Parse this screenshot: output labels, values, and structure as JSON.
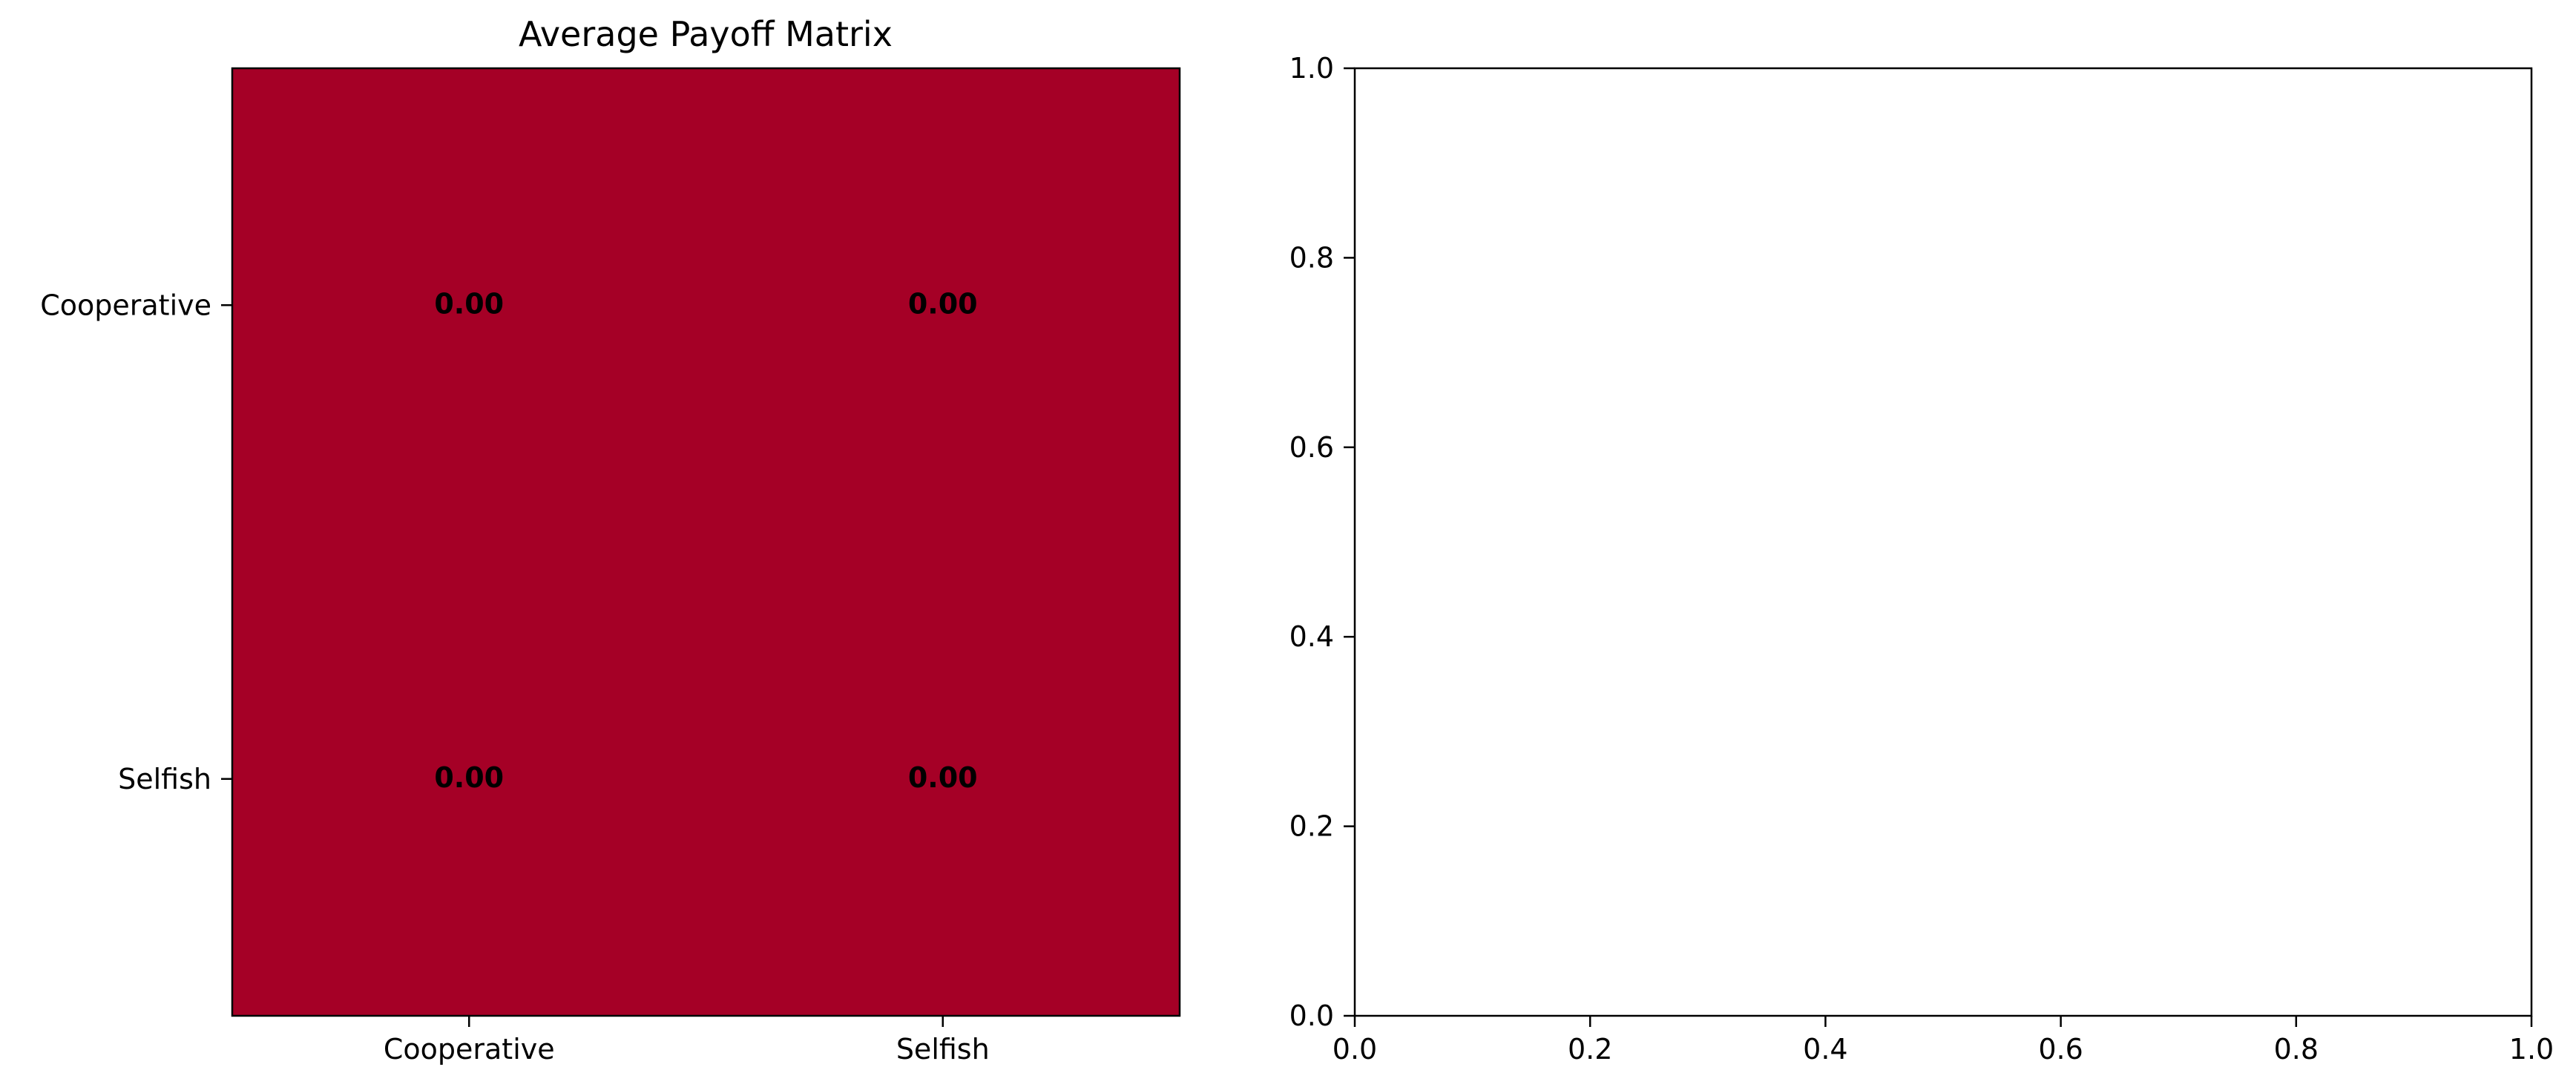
{
  "chart_data": [
    {
      "type": "heatmap",
      "title": "Average Payoff Matrix",
      "xlabel": "",
      "ylabel": "",
      "x_categories": [
        "Cooperative",
        "Selfish"
      ],
      "y_categories": [
        "Cooperative",
        "Selfish"
      ],
      "values": [
        [
          0.0,
          0.0
        ],
        [
          0.0,
          0.0
        ]
      ],
      "cell_labels": [
        [
          "0.00",
          "0.00"
        ],
        [
          "0.00",
          "0.00"
        ]
      ],
      "cell_color": "#a50026",
      "grid": false,
      "legend": "none"
    },
    {
      "type": "line",
      "title": "",
      "xlabel": "",
      "ylabel": "",
      "series": [],
      "xlim": [
        0.0,
        1.0
      ],
      "ylim": [
        0.0,
        1.0
      ],
      "x_ticks": [
        "0.0",
        "0.2",
        "0.4",
        "0.6",
        "0.8",
        "1.0"
      ],
      "y_ticks": [
        "0.0",
        "0.2",
        "0.4",
        "0.6",
        "0.8",
        "1.0"
      ],
      "grid": false,
      "legend": "none"
    }
  ]
}
